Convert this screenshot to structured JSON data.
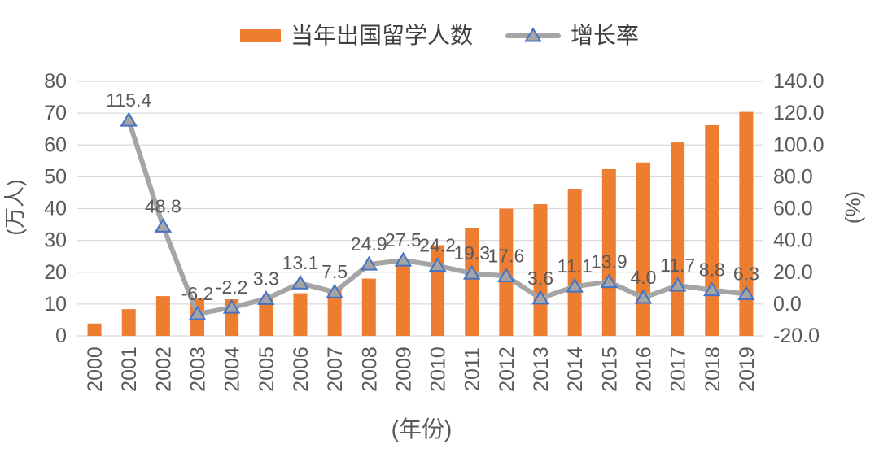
{
  "chart_data": {
    "type": "bar",
    "subtype": "bar-line-combo",
    "categories": [
      "2000",
      "2001",
      "2002",
      "2003",
      "2004",
      "2005",
      "2006",
      "2007",
      "2008",
      "2009",
      "2010",
      "2011",
      "2012",
      "2013",
      "2014",
      "2015",
      "2016",
      "2017",
      "2018",
      "2019"
    ],
    "series": [
      {
        "name": "当年出国留学人数",
        "type": "bar",
        "y_axis": "left",
        "color": "#ED7D31",
        "values": [
          3.9,
          8.4,
          12.5,
          11.7,
          11.5,
          11.9,
          13.4,
          14.4,
          18.0,
          22.9,
          28.5,
          34.0,
          40.0,
          41.4,
          46.0,
          52.4,
          54.5,
          60.8,
          66.2,
          70.4
        ]
      },
      {
        "name": "增长率",
        "type": "line",
        "y_axis": "right",
        "color": "#A5A5A5",
        "marker": {
          "shape": "triangle",
          "fill": "#A5A5A5",
          "stroke": "#4472C4"
        },
        "values": [
          null,
          115.4,
          48.8,
          -6.2,
          -2.2,
          3.3,
          13.1,
          7.5,
          24.9,
          27.5,
          24.2,
          19.3,
          17.6,
          3.6,
          11.1,
          13.9,
          4.0,
          11.7,
          8.8,
          6.3
        ],
        "data_labels": [
          null,
          "115.4",
          "48.8",
          "-6.2",
          "-2.2",
          "3.3",
          "13.1",
          "7.5",
          "24.9",
          "27.5",
          "24.2",
          "19.3",
          "17.6",
          "3.6",
          "11.1",
          "13.9",
          "4.0",
          "11.7",
          "8.8",
          "6.3"
        ]
      }
    ],
    "left_axis": {
      "title": "(万人)",
      "min": 0,
      "max": 80,
      "step": 10,
      "tick_labels": [
        "80",
        "70",
        "60",
        "50",
        "40",
        "30",
        "20",
        "10",
        "0"
      ]
    },
    "right_axis": {
      "title": "(%)",
      "min": -20,
      "max": 140,
      "step": 20,
      "tick_labels": [
        "140.0",
        "120.0",
        "100.0",
        "80.0",
        "60.0",
        "40.0",
        "20.0",
        "0.0",
        "-20.0"
      ]
    },
    "x_axis": {
      "title": "(年份)"
    },
    "grid": true,
    "legend_position": "top",
    "colors": {
      "bar": "#ED7D31",
      "line": "#A5A5A5",
      "marker_stroke": "#4472C4",
      "grid": "#D9D9D9",
      "axis_text": "#595959",
      "data_label_text": "#595959",
      "legend_text": "#404040",
      "background": "#FFFFFF"
    }
  }
}
